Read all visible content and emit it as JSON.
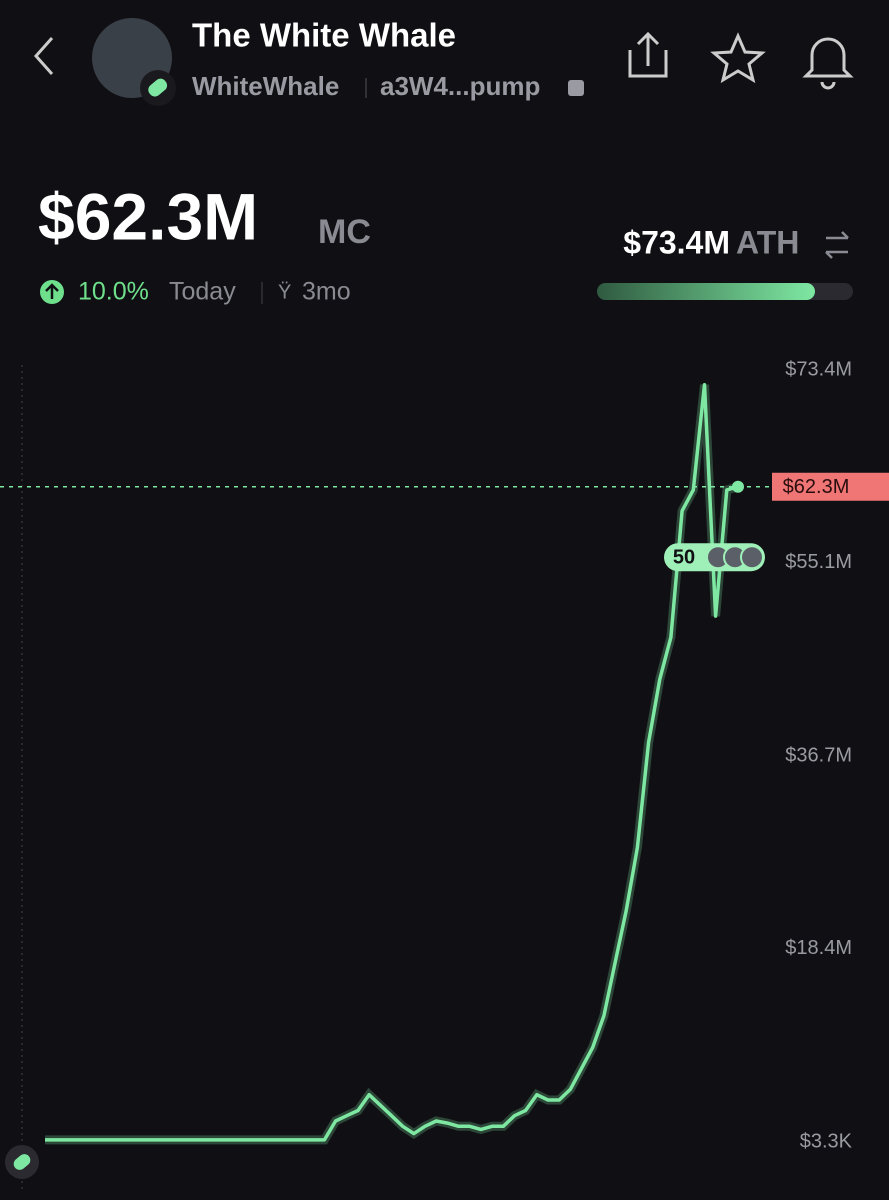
{
  "header": {
    "title": "The White Whale",
    "ticker": "WhiteWhale",
    "address": "a3W4...pump"
  },
  "stats": {
    "market_cap": "$62.3M",
    "market_cap_unit": "MC",
    "change": "10.0%",
    "change_period": "Today",
    "age": "3mo",
    "ath": "$73.4M",
    "ath_label": "ATH"
  },
  "chart_data": {
    "type": "line",
    "color": "#7ee8a2",
    "values": [
      0.2,
      0.2,
      0.2,
      0.2,
      0.2,
      0.2,
      0.2,
      0.2,
      0.2,
      0.2,
      0.2,
      0.2,
      0.2,
      0.2,
      0.2,
      0.2,
      0.2,
      0.2,
      0.2,
      0.2,
      0.2,
      0.2,
      0.2,
      0.2,
      0.2,
      0.2,
      2,
      2.5,
      3,
      4.5,
      3.5,
      2.5,
      1.5,
      0.8,
      1.5,
      2,
      1.8,
      1.5,
      1.5,
      1.2,
      1.5,
      1.5,
      2.5,
      3,
      4.5,
      4,
      4,
      5,
      7,
      9,
      12,
      17,
      22,
      28,
      38,
      44,
      48,
      60,
      62,
      72,
      50,
      62,
      62.3
    ],
    "ylim": [
      0.0033,
      73.4
    ],
    "yticks": [
      {
        "value": 73.4,
        "label": "$73.4M"
      },
      {
        "value": 55.1,
        "label": "$55.1M"
      },
      {
        "value": 36.7,
        "label": "$36.7M"
      },
      {
        "value": 18.4,
        "label": "$18.4M"
      },
      {
        "value": 0.0033,
        "label": "$3.3K"
      }
    ],
    "current": {
      "value": 62.3,
      "label": "$62.3M"
    },
    "holders_badge": "50"
  }
}
